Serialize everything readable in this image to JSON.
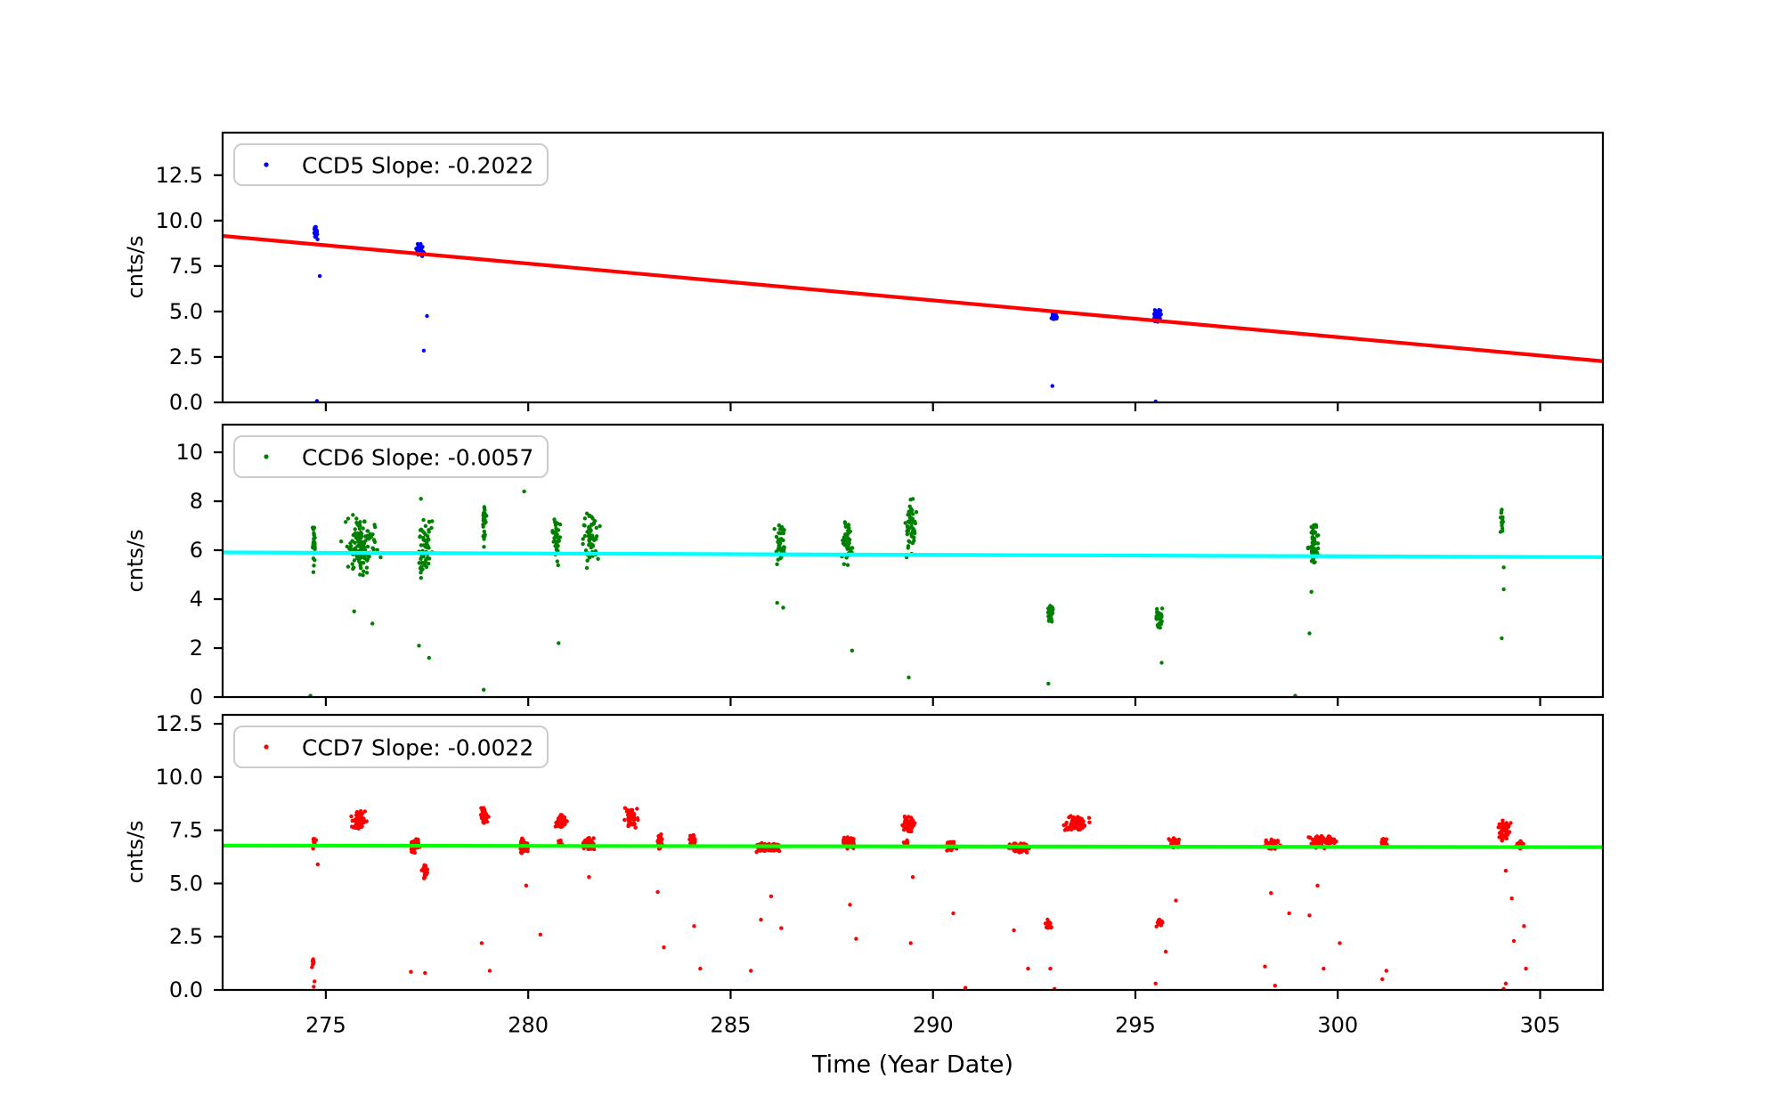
{
  "figure_title": "",
  "styles": {
    "background": "#ffffff",
    "axis_color": "#000000",
    "legend_border_color": "#cccccc",
    "legend_background": "#ffffff",
    "text_color": "#000000"
  },
  "chart_data": [
    {
      "type": "scatter",
      "legend_label": "CCD5 Slope: -0.2022",
      "series_name": "CCD5",
      "series_color": "#0000ff",
      "trend_line": {
        "color": "#ff0000",
        "slope": -0.2022,
        "y_at_xmin": 9.16
      },
      "ylabel": "cnts/s",
      "xlabel": "",
      "xlim": [
        272.45,
        306.55
      ],
      "ylim": [
        0,
        14.84
      ],
      "xticks": [
        275,
        280,
        285,
        290,
        295,
        300,
        305
      ],
      "ytick_labels": [
        "0.0",
        "2.5",
        "5.0",
        "7.5",
        "10.0",
        "12.5"
      ],
      "grid": false,
      "legend_position": "upper left",
      "cluster_fields": [
        "x_center",
        "x_spread",
        "y_min",
        "y_max",
        "count"
      ],
      "clusters": [
        [
          274.75,
          0.06,
          8.9,
          9.7,
          30
        ],
        [
          277.32,
          0.13,
          8.0,
          8.8,
          50
        ],
        [
          293.0,
          0.1,
          4.55,
          4.95,
          45
        ],
        [
          295.55,
          0.13,
          4.4,
          5.1,
          50
        ]
      ],
      "outlier_points": [
        [
          274.85,
          6.95
        ],
        [
          277.5,
          4.75
        ],
        [
          277.42,
          2.85
        ],
        [
          274.78,
          0.08
        ],
        [
          292.95,
          0.9
        ],
        [
          295.5,
          0.05
        ]
      ]
    },
    {
      "type": "scatter",
      "legend_label": "CCD6 Slope: -0.0057",
      "series_name": "CCD6",
      "series_color": "#008000",
      "trend_line": {
        "color": "#00ffff",
        "slope": -0.0057,
        "y_at_xmin": 5.91
      },
      "ylabel": "cnts/s",
      "xlabel": "",
      "xlim": [
        272.45,
        306.55
      ],
      "ylim": [
        0,
        11.13
      ],
      "xticks": [
        275,
        280,
        285,
        290,
        295,
        300,
        305
      ],
      "ytick_labels": [
        "0",
        "2",
        "4",
        "6",
        "8",
        "10"
      ],
      "grid": false,
      "legend_position": "upper left",
      "cluster_fields": [
        "x_center",
        "x_spread",
        "y_min",
        "y_max",
        "count"
      ],
      "clusters": [
        [
          274.7,
          0.06,
          5.0,
          7.3,
          26
        ],
        [
          275.85,
          0.55,
          4.8,
          7.5,
          140
        ],
        [
          277.45,
          0.27,
          4.8,
          7.3,
          60
        ],
        [
          278.92,
          0.09,
          6.1,
          8.1,
          28
        ],
        [
          280.7,
          0.13,
          5.3,
          7.6,
          40
        ],
        [
          281.55,
          0.25,
          5.2,
          7.7,
          65
        ],
        [
          286.2,
          0.18,
          5.1,
          7.3,
          40
        ],
        [
          287.9,
          0.18,
          5.2,
          7.4,
          45
        ],
        [
          289.45,
          0.2,
          5.4,
          8.3,
          50
        ],
        [
          292.9,
          0.1,
          2.9,
          3.9,
          30
        ],
        [
          295.6,
          0.13,
          2.7,
          3.8,
          30
        ],
        [
          299.4,
          0.16,
          5.3,
          7.5,
          50
        ],
        [
          304.05,
          0.05,
          6.6,
          7.9,
          16
        ]
      ],
      "outlier_points": [
        [
          277.35,
          8.1
        ],
        [
          279.9,
          8.4
        ],
        [
          275.7,
          3.5
        ],
        [
          276.15,
          3.0
        ],
        [
          277.3,
          2.1
        ],
        [
          277.55,
          1.6
        ],
        [
          278.9,
          0.3
        ],
        [
          280.75,
          2.2
        ],
        [
          286.15,
          3.85
        ],
        [
          286.3,
          3.65
        ],
        [
          288.0,
          1.9
        ],
        [
          289.4,
          0.8
        ],
        [
          292.85,
          0.55
        ],
        [
          295.65,
          1.4
        ],
        [
          299.35,
          4.3
        ],
        [
          299.3,
          2.6
        ],
        [
          298.95,
          0.05
        ],
        [
          304.1,
          5.3
        ],
        [
          304.1,
          4.4
        ],
        [
          304.05,
          2.4
        ],
        [
          274.62,
          0.05
        ]
      ]
    },
    {
      "type": "scatter",
      "legend_label": "CCD7 Slope: -0.0022",
      "series_name": "CCD7",
      "series_color": "#ff0000",
      "trend_line": {
        "color": "#00ff00",
        "slope": -0.0022,
        "y_at_xmin": 6.78
      },
      "ylabel": "cnts/s",
      "xlabel": "Time (Year Date)",
      "xlim": [
        272.45,
        306.55
      ],
      "ylim": [
        0,
        12.92
      ],
      "xticks": [
        275,
        280,
        285,
        290,
        295,
        300,
        305
      ],
      "ytick_labels": [
        "0.0",
        "2.5",
        "5.0",
        "7.5",
        "10.0",
        "12.5"
      ],
      "grid": false,
      "legend_position": "upper left",
      "cluster_fields": [
        "x_center",
        "x_spread",
        "y_min",
        "y_max",
        "count"
      ],
      "clusters": [
        [
          274.7,
          0.07,
          6.6,
          7.15,
          15
        ],
        [
          274.68,
          0.06,
          1.0,
          1.55,
          10
        ],
        [
          275.8,
          0.23,
          7.5,
          8.45,
          65
        ],
        [
          277.2,
          0.16,
          6.4,
          7.15,
          50
        ],
        [
          277.45,
          0.1,
          5.2,
          5.95,
          25
        ],
        [
          278.92,
          0.13,
          7.8,
          8.65,
          40
        ],
        [
          279.9,
          0.17,
          6.35,
          7.15,
          50
        ],
        [
          280.82,
          0.17,
          7.5,
          8.35,
          50
        ],
        [
          280.78,
          0.09,
          6.7,
          7.1,
          12
        ],
        [
          281.5,
          0.18,
          6.55,
          7.2,
          55
        ],
        [
          282.55,
          0.2,
          7.6,
          8.6,
          55
        ],
        [
          283.25,
          0.1,
          6.6,
          7.35,
          30
        ],
        [
          284.05,
          0.12,
          6.75,
          7.35,
          25
        ],
        [
          285.95,
          0.42,
          6.45,
          6.95,
          95
        ],
        [
          287.9,
          0.22,
          6.6,
          7.25,
          60
        ],
        [
          289.4,
          0.2,
          7.3,
          8.25,
          60
        ],
        [
          289.33,
          0.1,
          6.75,
          7.1,
          10
        ],
        [
          290.45,
          0.17,
          6.5,
          7.0,
          40
        ],
        [
          292.1,
          0.38,
          6.4,
          6.95,
          90
        ],
        [
          292.85,
          0.1,
          2.85,
          3.35,
          22
        ],
        [
          293.55,
          0.4,
          7.35,
          8.25,
          85
        ],
        [
          295.95,
          0.18,
          6.6,
          7.15,
          50
        ],
        [
          295.6,
          0.1,
          2.9,
          3.5,
          18
        ],
        [
          298.4,
          0.26,
          6.6,
          7.1,
          55
        ],
        [
          299.65,
          0.45,
          6.6,
          7.35,
          95
        ],
        [
          301.15,
          0.1,
          6.7,
          7.2,
          25
        ],
        [
          304.1,
          0.2,
          6.9,
          8.0,
          50
        ],
        [
          304.5,
          0.13,
          6.6,
          7.1,
          22
        ]
      ],
      "outlier_points": [
        [
          274.8,
          5.9
        ],
        [
          274.72,
          0.4
        ],
        [
          274.7,
          0.15
        ],
        [
          277.1,
          0.85
        ],
        [
          277.45,
          0.8
        ],
        [
          278.85,
          2.2
        ],
        [
          279.05,
          0.9
        ],
        [
          279.95,
          4.9
        ],
        [
          280.3,
          2.6
        ],
        [
          281.5,
          5.3
        ],
        [
          283.2,
          4.6
        ],
        [
          283.35,
          2.0
        ],
        [
          284.1,
          3.0
        ],
        [
          284.25,
          1.0
        ],
        [
          285.5,
          0.9
        ],
        [
          286.0,
          4.4
        ],
        [
          285.75,
          3.3
        ],
        [
          286.25,
          2.9
        ],
        [
          287.95,
          4.0
        ],
        [
          288.1,
          2.4
        ],
        [
          289.5,
          5.3
        ],
        [
          289.45,
          2.2
        ],
        [
          290.5,
          3.6
        ],
        [
          290.8,
          0.1
        ],
        [
          292.0,
          2.8
        ],
        [
          292.35,
          1.0
        ],
        [
          292.9,
          1.0
        ],
        [
          293.0,
          0.05
        ],
        [
          295.75,
          1.8
        ],
        [
          295.5,
          0.3
        ],
        [
          296.0,
          4.2
        ],
        [
          298.8,
          3.6
        ],
        [
          298.35,
          4.55
        ],
        [
          298.2,
          1.1
        ],
        [
          298.45,
          0.2
        ],
        [
          299.5,
          4.9
        ],
        [
          299.3,
          3.5
        ],
        [
          300.05,
          2.2
        ],
        [
          299.65,
          1.0
        ],
        [
          301.2,
          0.9
        ],
        [
          301.1,
          0.5
        ],
        [
          304.15,
          5.6
        ],
        [
          304.3,
          4.3
        ],
        [
          304.6,
          3.0
        ],
        [
          304.35,
          2.3
        ],
        [
          304.65,
          1.0
        ],
        [
          304.15,
          0.3
        ],
        [
          304.1,
          0.05
        ]
      ]
    }
  ]
}
